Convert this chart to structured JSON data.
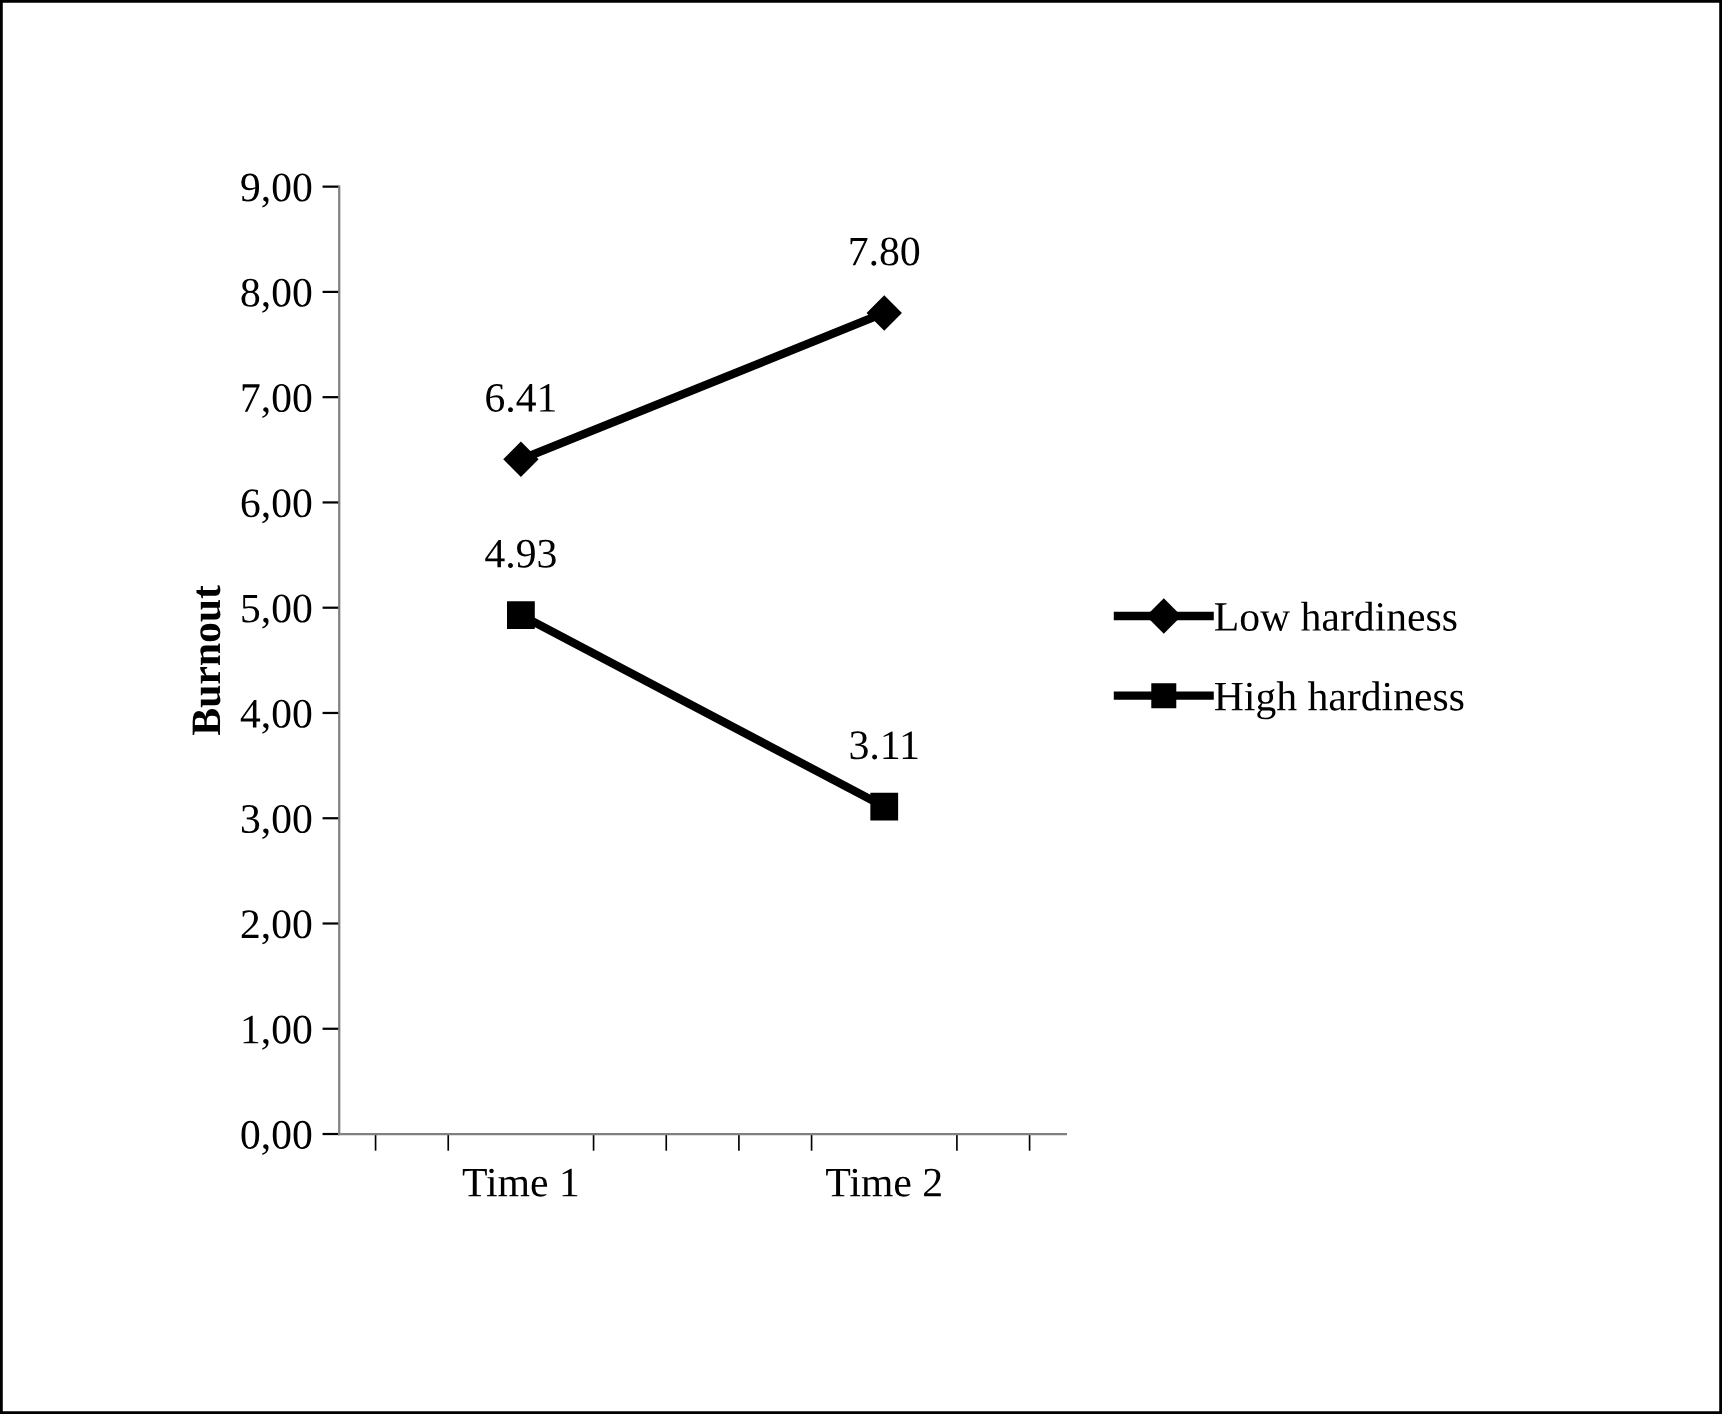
{
  "chart_data": {
    "type": "line",
    "ylabel": "Burnout",
    "categories": [
      "Time 1",
      "Time 2"
    ],
    "series": [
      {
        "name": "Low hardiness",
        "color": "#000000",
        "values": [
          6.41,
          7.8
        ],
        "value_labels": [
          "6.41",
          "7.80"
        ],
        "marker": "diamond"
      },
      {
        "name": "High hardiness",
        "color": "#000000",
        "values": [
          4.93,
          3.11
        ],
        "value_labels": [
          "4.93",
          "3.11"
        ],
        "marker": "square"
      }
    ],
    "ylim": [
      0,
      9
    ],
    "yticks": [
      {
        "value": 0,
        "label": "0,00"
      },
      {
        "value": 1,
        "label": "1,00"
      },
      {
        "value": 2,
        "label": "2,00"
      },
      {
        "value": 3,
        "label": "3,00"
      },
      {
        "value": 4,
        "label": "4,00"
      },
      {
        "value": 5,
        "label": "5,00"
      },
      {
        "value": 6,
        "label": "6,00"
      },
      {
        "value": 7,
        "label": "7,00"
      },
      {
        "value": 8,
        "label": "8,00"
      },
      {
        "value": 9,
        "label": "9,00"
      }
    ],
    "grid": false,
    "legend": "right",
    "line_style": "solid"
  }
}
